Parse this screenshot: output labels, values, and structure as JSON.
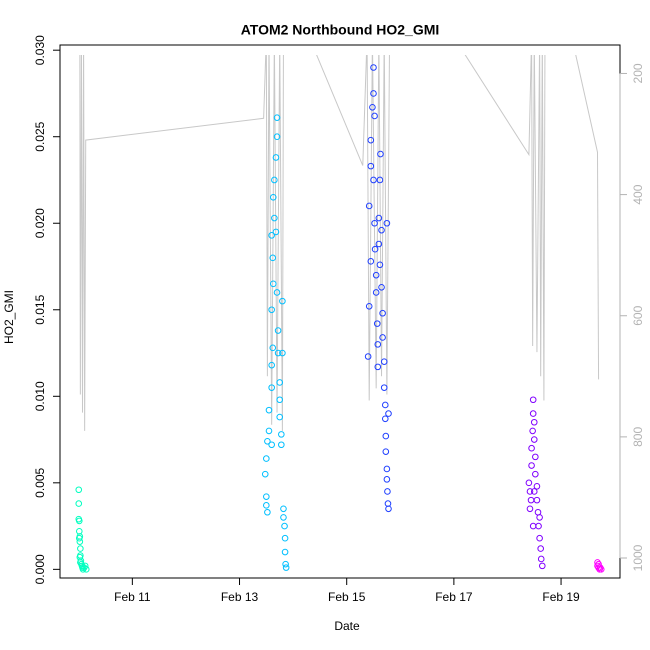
{
  "chart_data": {
    "type": "scatter",
    "title": "ATOM2 Northbound HO2_GMI",
    "x_label": "Date",
    "y_label": "HO2_GMI",
    "xlim": [
      9.65,
      20.1
    ],
    "xticks": [
      {
        "value": 11,
        "label": "Feb 11"
      },
      {
        "value": 13,
        "label": "Feb 13"
      },
      {
        "value": 15,
        "label": "Feb 15"
      },
      {
        "value": 17,
        "label": "Feb 17"
      },
      {
        "value": 19,
        "label": "Feb 19"
      }
    ],
    "ylim": [
      -0.0005,
      0.0303
    ],
    "yticks": [
      {
        "value": 0,
        "label": "0.000"
      },
      {
        "value": 0.005,
        "label": "0.005"
      },
      {
        "value": 0.01,
        "label": "0.010"
      },
      {
        "value": 0.015,
        "label": "0.015"
      },
      {
        "value": 0.02,
        "label": "0.020"
      },
      {
        "value": 0.025,
        "label": "0.025"
      },
      {
        "value": 0.03,
        "label": "0.030"
      }
    ],
    "y2lim": [
      1033,
      153
    ],
    "y2ticks": [
      200,
      400,
      600,
      800,
      1000
    ],
    "series": [
      {
        "color": "#00ffc0",
        "x": [
          10.0,
          10.0,
          10.01,
          10.01,
          10.02,
          10.02,
          10.03,
          10.03,
          10.04,
          10.05,
          10.06,
          10.07,
          10.08,
          10.1,
          10.12,
          10.14,
          10.0,
          10.01,
          10.02,
          10.03
        ],
        "values": [
          0.0046,
          0.0038,
          0.0028,
          0.0022,
          0.0019,
          0.0016,
          0.0012,
          0.0008,
          0.0005,
          0.0003,
          0.0002,
          0.0001,
          0.0,
          0.0001,
          0.0002,
          0.0,
          0.0029,
          0.0018,
          0.0007,
          0.0004
        ]
      },
      {
        "color": "#00bfff",
        "x": [
          13.5,
          13.5,
          13.52,
          13.48,
          13.5,
          13.52,
          13.55,
          13.55,
          13.6,
          13.6,
          13.62,
          13.6,
          13.63,
          13.62,
          13.6,
          13.65,
          13.63,
          13.65,
          13.68,
          13.7,
          13.7,
          13.68,
          13.7,
          13.72,
          13.72,
          13.75,
          13.75,
          13.75,
          13.78,
          13.78,
          13.8,
          13.8,
          13.82,
          13.82,
          13.84,
          13.85,
          13.85,
          13.86,
          13.87,
          13.6
        ],
        "values": [
          0.0042,
          0.0037,
          0.0033,
          0.0055,
          0.0064,
          0.0074,
          0.008,
          0.0092,
          0.0105,
          0.0118,
          0.0128,
          0.015,
          0.0165,
          0.018,
          0.0193,
          0.0203,
          0.0215,
          0.0225,
          0.0238,
          0.0261,
          0.025,
          0.0195,
          0.016,
          0.0138,
          0.0125,
          0.0108,
          0.0098,
          0.0088,
          0.0078,
          0.0072,
          0.0125,
          0.0155,
          0.0035,
          0.003,
          0.0025,
          0.0018,
          0.001,
          0.0003,
          0.0001,
          0.0072
        ]
      },
      {
        "color": "#2040ff",
        "x": [
          15.4,
          15.42,
          15.42,
          15.45,
          15.45,
          15.48,
          15.5,
          15.5,
          15.52,
          15.5,
          15.52,
          15.53,
          15.55,
          15.55,
          15.57,
          15.58,
          15.58,
          15.6,
          15.6,
          15.62,
          15.62,
          15.63,
          15.65,
          15.65,
          15.67,
          15.67,
          15.7,
          15.7,
          15.72,
          15.72,
          15.73,
          15.73,
          15.75,
          15.75,
          15.76,
          15.77,
          15.78,
          15.78,
          15.75,
          15.45
        ],
        "values": [
          0.0123,
          0.0152,
          0.021,
          0.0233,
          0.0248,
          0.0267,
          0.029,
          0.0275,
          0.0262,
          0.0225,
          0.02,
          0.0185,
          0.017,
          0.016,
          0.0142,
          0.013,
          0.0117,
          0.0203,
          0.0188,
          0.0176,
          0.0225,
          0.024,
          0.0196,
          0.0163,
          0.0148,
          0.0134,
          0.012,
          0.0105,
          0.0095,
          0.0087,
          0.0077,
          0.0068,
          0.0058,
          0.0052,
          0.0045,
          0.0038,
          0.0035,
          0.009,
          0.02,
          0.0178
        ]
      },
      {
        "color": "#8000ff",
        "x": [
          18.4,
          18.42,
          18.44,
          18.42,
          18.45,
          18.45,
          18.47,
          18.48,
          18.48,
          18.5,
          18.5,
          18.52,
          18.52,
          18.55,
          18.55,
          18.57,
          18.58,
          18.6,
          18.62,
          18.63,
          18.65,
          18.48,
          18.5,
          18.6
        ],
        "values": [
          0.005,
          0.0045,
          0.004,
          0.0035,
          0.006,
          0.007,
          0.008,
          0.009,
          0.0098,
          0.0085,
          0.0075,
          0.0065,
          0.0055,
          0.0048,
          0.004,
          0.0033,
          0.0025,
          0.0018,
          0.0012,
          0.0006,
          0.0002,
          0.0025,
          0.0045,
          0.003
        ]
      },
      {
        "color": "#ff00ff",
        "x": [
          19.68,
          19.7,
          19.7,
          19.72,
          19.73,
          19.75,
          19.68
        ],
        "values": [
          0.0004,
          0.0003,
          0.0001,
          0.0,
          0.0001,
          0.0,
          0.0002
        ]
      },
      {
        "color": "#c8c8c8",
        "axis": "y2",
        "x": [
          10.02,
          10.03,
          10.05,
          10.07,
          10.09,
          10.11,
          10.13,
          13.45,
          13.5,
          13.52,
          13.55,
          13.6,
          13.65,
          13.7,
          13.75,
          13.8,
          13.82,
          14.3,
          15.3,
          15.38,
          15.42,
          15.48,
          15.55,
          15.6,
          15.65,
          15.7,
          15.75,
          15.8,
          17.0,
          18.4,
          18.45,
          18.47,
          18.5,
          18.55,
          18.6,
          18.62,
          18.65,
          18.68,
          18.7,
          19.2,
          19.68,
          19.7
        ],
        "values": [
          140,
          730,
          140,
          760,
          140,
          790,
          310,
          274,
          140,
          700,
          140,
          780,
          140,
          760,
          140,
          790,
          140,
          140,
          352,
          140,
          740,
          140,
          720,
          140,
          700,
          140,
          730,
          140,
          140,
          334,
          140,
          650,
          140,
          660,
          140,
          700,
          140,
          740,
          140,
          140,
          330,
          705
        ]
      }
    ]
  }
}
